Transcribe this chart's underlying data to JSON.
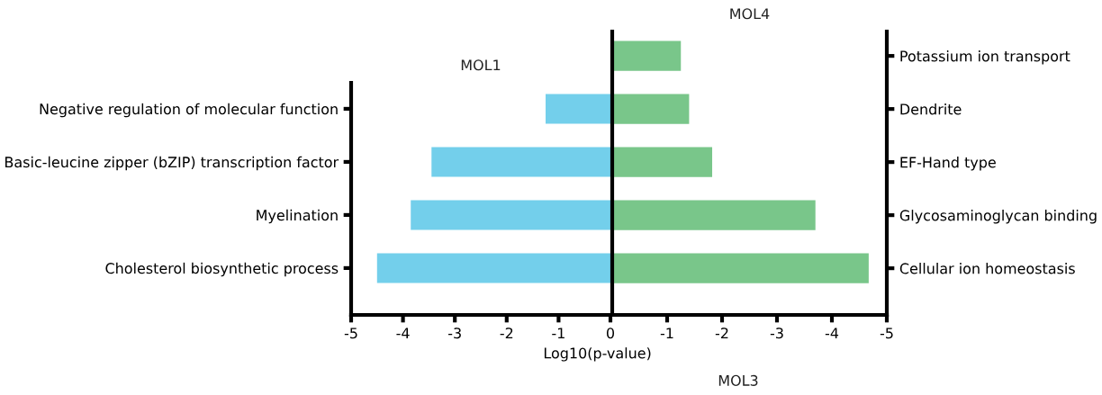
{
  "chart_data": [
    {
      "type": "bar",
      "orientation": "horizontal",
      "title": "MOL1",
      "xlabel": "Log10(p-value)",
      "categories": [
        "Negative regulation of molecular function",
        "Basic-leucine zipper (bZIP) transcription factor",
        "Myelination",
        "Cholesterol biosynthetic process"
      ],
      "values": [
        -1.25,
        -3.45,
        -3.85,
        -4.5
      ],
      "color": "#73cfeb",
      "xlim": [
        -5,
        0
      ],
      "xticks": [
        -5,
        -4,
        -3,
        -2,
        -1,
        0
      ],
      "grid": false,
      "legend": false
    },
    {
      "type": "bar",
      "orientation": "horizontal",
      "title": "MOL4",
      "annotations": [
        "MOL3"
      ],
      "categories": [
        "Potassium ion transport",
        "Dendrite",
        "EF-Hand type",
        "Glycosaminoglycan binding",
        "Cellular ion homeostasis"
      ],
      "values": [
        -1.25,
        -1.4,
        -1.82,
        -3.7,
        -4.67
      ],
      "color": "#79c68a",
      "xlim": [
        0,
        -5
      ],
      "xticks": [
        -1,
        -2,
        -3,
        -4,
        -5
      ],
      "grid": false,
      "legend": false
    }
  ]
}
